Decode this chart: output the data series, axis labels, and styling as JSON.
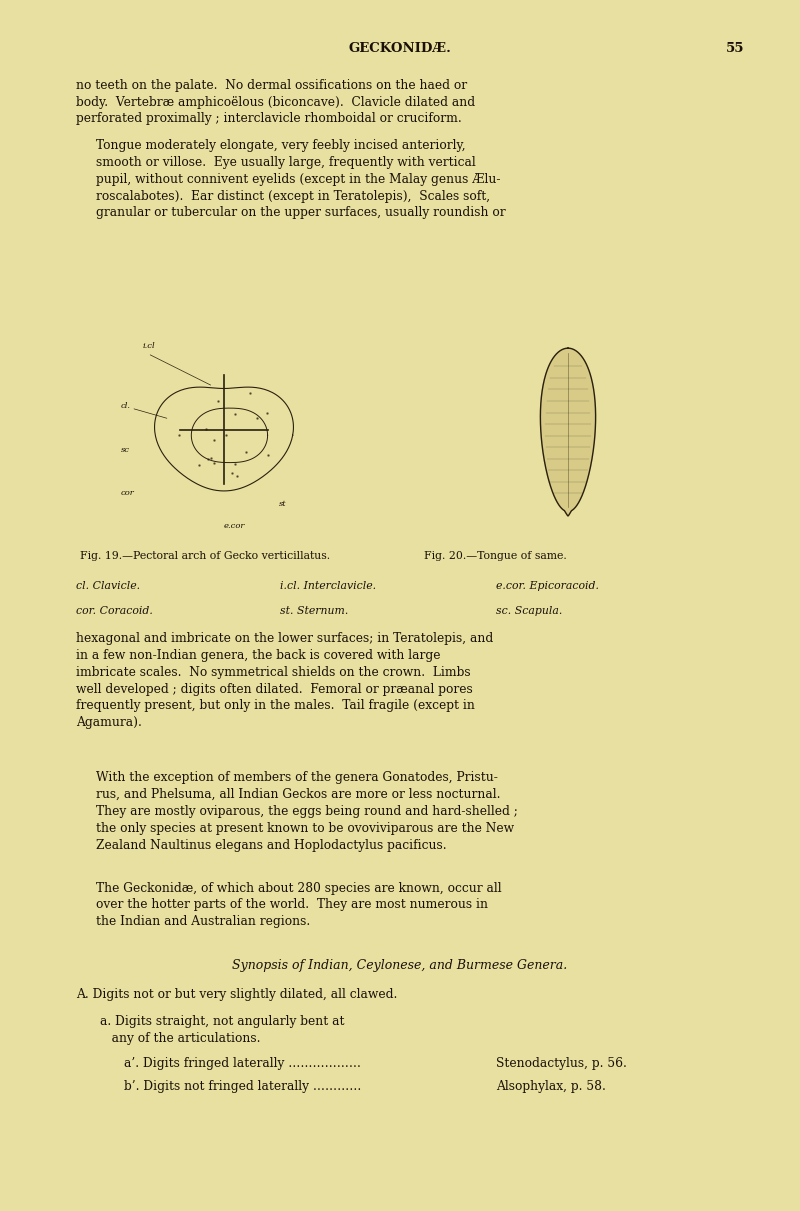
{
  "bg_color": "#e8e0a0",
  "page_bg": "#d4cc88",
  "text_color": "#1a1008",
  "page_width": 8.0,
  "page_height": 12.11,
  "dpi": 100,
  "header_title": "GECKONIDÆ.",
  "header_page": "55",
  "para1": "no teeth on the palate.  No dermal ossifications on the haed or body.  Vertebræ amphicoëlous (biconcave).  Clavicle dilated and perforated proximally ; interclavicle rhomboidal or cruciform.",
  "para2_indent": "Tongue moderately elongate, very feebly incised anteriorly, smooth or villose.  Eye usually large, frequently with vertical pupil, without connivent eyelids (except in the Malay genus Ælu-\nroscalabotes).  Ear distinct (except in Teratolepis),  Scales soft, granular or tubercular on the upper surfaces, usually roundish or",
  "fig_caption_left": "Fig. 19.—Pectoral arch of Gecko verticillatus.",
  "fig_caption_right": "Fig. 20.—Tongue of same.",
  "legend_cl": "cl. Clavicle.",
  "legend_icl": "i.cl. Interclavicle.",
  "legend_ecor": "e.cor. Epicoracoid.",
  "legend_cor": "cor. Coracoid.",
  "legend_st": "st. Sternum.",
  "legend_sc": "sc. Scapula.",
  "para3": "hexagonal and imbricate on the lower surfaces; in Teratolepis, and in a few non-Indian genera, the back is covered with large imbricate scales.  No symmetrical shields on the crown.  Limbs well developed ; digits often dilated.  Femoral or præanal pores frequently present, but only in the males.  Tail fragile (except in Agamura).",
  "para4": "With the exception of members of the genera Gonatodes, Pristu-\nrus, and Phelsuma, all Indian Geckos are more or less nocturnal. They are mostly oviparous, the eggs being round and hard-shelled ; the only species at present known to be ovoviviparous are the New Zealand Naultinus elegans and Hoplodactylus pacificus.",
  "para5": "The Geckonidæ, of which about 280 species are known, occur all over the hotter parts of the world.  They are most numerous in the Indian and Australian regions.",
  "synopsis_title": "Synopsis of Indian, Ceylonese, and Burmese Genera.",
  "synopsis_A": "A. Digits not or but very slightly dilated, all clawed.",
  "synopsis_a": "a. Digits straight, not angularly bent at\n   any of the articulations.",
  "synopsis_a1": "a’. Digits fringed laterally ……………  Stenodactylus, p. 56.",
  "synopsis_b1": "b’. Digits not fringed laterally ………  Alsophylax, p. 58."
}
